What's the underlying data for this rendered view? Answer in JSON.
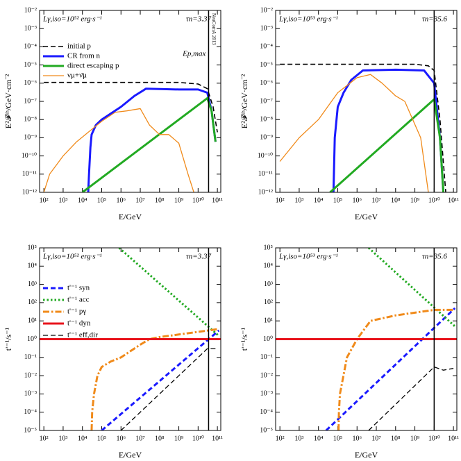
{
  "chart_data": [
    {
      "type": "line",
      "x_label": "E/GeV",
      "y_label": "E²𝓕ˢʰ/GeV·cm⁻²",
      "luminosity_label": "Lγ,iso=10⁵² erg·s⁻¹",
      "tau_label": "τn=3.37",
      "vline": 35000000000.0,
      "vline_label": "Ep,max",
      "vline_note": "NeuComA 2013",
      "log_x": true,
      "log_y": true,
      "legend": "upper left",
      "xlim": [
        60,
        150000000000.0
      ],
      "ylim": [
        1e-12,
        0.01
      ],
      "xticks": [
        {
          "value": 100.0,
          "label": "10²"
        },
        {
          "value": 1000.0,
          "label": "10³"
        },
        {
          "value": 10000.0,
          "label": "10⁴"
        },
        {
          "value": 100000.0,
          "label": "10⁵"
        },
        {
          "value": 1000000.0,
          "label": "10⁶"
        },
        {
          "value": 10000000.0,
          "label": "10⁷"
        },
        {
          "value": 100000000.0,
          "label": "10⁸"
        },
        {
          "value": 1000000000.0,
          "label": "10⁹"
        },
        {
          "value": 10000000000.0,
          "label": "10¹⁰"
        },
        {
          "value": 100000000000.0,
          "label": "10¹¹"
        }
      ],
      "yticks": [
        {
          "value": 1e-12,
          "label": "10⁻¹²"
        },
        {
          "value": 1e-11,
          "label": "10⁻¹¹"
        },
        {
          "value": 1e-10,
          "label": "10⁻¹⁰"
        },
        {
          "value": 1e-09,
          "label": "10⁻⁹"
        },
        {
          "value": 1e-08,
          "label": "10⁻⁸"
        },
        {
          "value": 1e-07,
          "label": "10⁻⁷"
        },
        {
          "value": 1e-06,
          "label": "10⁻⁶"
        },
        {
          "value": 1e-05,
          "label": "10⁻⁵"
        },
        {
          "value": 0.0001,
          "label": "10⁻⁴"
        },
        {
          "value": 0.001,
          "label": "10⁻³"
        },
        {
          "value": 0.01,
          "label": "10⁻²"
        }
      ],
      "series": [
        {
          "name": "initial p",
          "color": "#000000",
          "style": "dashed",
          "width": 1.6,
          "x": [
            100,
            1000000000.0,
            10000000000.0,
            30000000000.0,
            60000000000.0,
            100000000000.0
          ],
          "values": [
            1.1e-06,
            1.1e-06,
            9e-07,
            5e-07,
            5e-08,
            2e-09
          ]
        },
        {
          "name": "CR from n",
          "color": "#1a1aff",
          "style": "solid",
          "width": 3,
          "x": [
            20000.0,
            22000.0,
            26000.0,
            30000.0,
            50000.0,
            100000.0,
            1000000.0,
            5000000.0,
            20000000.0,
            1000000000.0,
            10000000000.0,
            30000000000.0,
            50000000000.0,
            80000000000.0
          ],
          "values": [
            1e-12,
            1e-11,
            3e-10,
            1.5e-09,
            5e-09,
            1e-08,
            5e-08,
            2e-07,
            5e-07,
            4.5e-07,
            4.5e-07,
            3e-07,
            3e-08,
            6e-10
          ]
        },
        {
          "name": "direct escaping p",
          "color": "#22aa22",
          "style": "solid",
          "width": 3,
          "x": [
            10000.0,
            30000000000.0,
            50000000000.0,
            80000000000.0
          ],
          "values": [
            1e-12,
            1.5e-07,
            3e-08,
            6e-10
          ]
        },
        {
          "name": "νμ+ν̄μ",
          "color": "#f08a1a",
          "style": "solid",
          "width": 1.3,
          "x": [
            100,
            200,
            1000.0,
            5000.0,
            20000.0,
            100000.0,
            500000.0,
            2000000.0,
            10000000.0,
            30000000.0,
            100000000.0,
            300000000.0,
            1000000000.0,
            3000000000.0,
            6000000000.0
          ],
          "values": [
            1e-12,
            1e-11,
            1e-10,
            6e-10,
            2e-09,
            8e-09,
            2.5e-08,
            3e-08,
            4e-08,
            5e-09,
            1.5e-09,
            1.5e-09,
            5e-10,
            1e-11,
            1e-12
          ]
        }
      ]
    },
    {
      "type": "line",
      "x_label": "E/GeV",
      "y_label": "E²𝓕ˢʰ/GeV·cm⁻²",
      "luminosity_label": "Lγ,iso=10⁵³ erg·s⁻¹",
      "tau_label": "τn=35.6",
      "vline": 10000000000.0,
      "log_x": true,
      "log_y": true,
      "xlim": [
        60,
        150000000000.0
      ],
      "ylim": [
        1e-12,
        0.01
      ],
      "xticks": [
        {
          "value": 100.0,
          "label": "10²"
        },
        {
          "value": 1000.0,
          "label": "10³"
        },
        {
          "value": 10000.0,
          "label": "10⁴"
        },
        {
          "value": 100000.0,
          "label": "10⁵"
        },
        {
          "value": 1000000.0,
          "label": "10⁶"
        },
        {
          "value": 10000000.0,
          "label": "10⁷"
        },
        {
          "value": 100000000.0,
          "label": "10⁸"
        },
        {
          "value": 1000000000.0,
          "label": "10⁹"
        },
        {
          "value": 10000000000.0,
          "label": "10¹⁰"
        },
        {
          "value": 100000000000.0,
          "label": "10¹¹"
        }
      ],
      "yticks": [
        {
          "value": 1e-12,
          "label": "10⁻¹²"
        },
        {
          "value": 1e-11,
          "label": "10⁻¹¹"
        },
        {
          "value": 1e-10,
          "label": "10⁻¹⁰"
        },
        {
          "value": 1e-09,
          "label": "10⁻⁹"
        },
        {
          "value": 1e-08,
          "label": "10⁻⁸"
        },
        {
          "value": 1e-07,
          "label": "10⁻⁷"
        },
        {
          "value": 1e-06,
          "label": "10⁻⁶"
        },
        {
          "value": 1e-05,
          "label": "10⁻⁵"
        },
        {
          "value": 0.0001,
          "label": "10⁻⁴"
        },
        {
          "value": 0.001,
          "label": "10⁻³"
        },
        {
          "value": 0.01,
          "label": "10⁻²"
        }
      ],
      "series": [
        {
          "color": "#000000",
          "style": "dashed",
          "width": 1.6,
          "x": [
            100,
            1000000000.0,
            5000000000.0,
            10000000000.0,
            20000000000.0,
            40000000000.0
          ],
          "values": [
            1.1e-05,
            1.1e-05,
            9e-06,
            5e-06,
            1e-08,
            1e-12
          ]
        },
        {
          "color": "#1a1aff",
          "style": "solid",
          "width": 3,
          "x": [
            60000.0,
            70000.0,
            100000.0,
            200000.0,
            500000.0,
            2000000.0,
            100000000.0,
            3000000000.0,
            10000000000.0,
            20000000000.0,
            30000000000.0
          ],
          "values": [
            1e-12,
            1e-09,
            5e-08,
            3e-07,
            1.5e-06,
            5e-06,
            5.5e-06,
            5e-06,
            1e-06,
            1e-09,
            1e-12
          ]
        },
        {
          "color": "#22aa22",
          "style": "solid",
          "width": 3,
          "x": [
            40000.0,
            10000000000.0,
            20000000000.0,
            30000000000.0
          ],
          "values": [
            1e-12,
            1.3e-07,
            1e-09,
            1e-12
          ]
        },
        {
          "color": "#f08a1a",
          "style": "solid",
          "width": 1.3,
          "x": [
            100,
            1000.0,
            10000.0,
            100000.0,
            1000000.0,
            5000000.0,
            20000000.0,
            100000000.0,
            300000000.0,
            2000000000.0,
            5000000000.0
          ],
          "values": [
            5e-11,
            1e-09,
            1e-08,
            3e-07,
            2e-06,
            3e-06,
            1e-06,
            2e-07,
            1e-07,
            1e-09,
            1e-12
          ]
        }
      ]
    },
    {
      "type": "line",
      "x_label": "E/GeV",
      "y_label": "t'⁻¹/s⁻¹",
      "luminosity_label": "Lγ,iso=10⁵² erg·s⁻¹",
      "tau_label": "τn=3.37",
      "vline": 35000000000.0,
      "log_x": true,
      "log_y": true,
      "legend": "upper left",
      "xlim": [
        60,
        150000000000.0
      ],
      "ylim": [
        1e-05,
        100000.0
      ],
      "xticks": [
        {
          "value": 100.0,
          "label": "10²"
        },
        {
          "value": 1000.0,
          "label": "10³"
        },
        {
          "value": 10000.0,
          "label": "10⁴"
        },
        {
          "value": 100000.0,
          "label": "10⁵"
        },
        {
          "value": 1000000.0,
          "label": "10⁶"
        },
        {
          "value": 10000000.0,
          "label": "10⁷"
        },
        {
          "value": 100000000.0,
          "label": "10⁸"
        },
        {
          "value": 1000000000.0,
          "label": "10⁹"
        },
        {
          "value": 10000000000.0,
          "label": "10¹⁰"
        },
        {
          "value": 100000000000.0,
          "label": "10¹¹"
        }
      ],
      "yticks": [
        {
          "value": 1e-05,
          "label": "10⁻⁵"
        },
        {
          "value": 0.0001,
          "label": "10⁻⁴"
        },
        {
          "value": 0.001,
          "label": "10⁻³"
        },
        {
          "value": 0.01,
          "label": "10⁻²"
        },
        {
          "value": 0.1,
          "label": "10⁻¹"
        },
        {
          "value": 1,
          "label": "10⁰"
        },
        {
          "value": 10,
          "label": "10¹"
        },
        {
          "value": 100,
          "label": "10²"
        },
        {
          "value": 1000,
          "label": "10³"
        },
        {
          "value": 10000,
          "label": "10⁴"
        },
        {
          "value": 100000,
          "label": "10⁵"
        }
      ],
      "series": [
        {
          "name": "t'⁻¹ syn",
          "color": "#1a1aff",
          "style": "dashed",
          "width": 3,
          "x": [
            100000.0,
            120000000000.0
          ],
          "values": [
            1e-05,
            3
          ]
        },
        {
          "name": "t'⁻¹ acc",
          "color": "#22aa22",
          "style": "dotted",
          "width": 3,
          "x": [
            800000.0,
            120000000000.0
          ],
          "values": [
            100000,
            1.5
          ]
        },
        {
          "name": "t'⁻¹ pγ",
          "color": "#f08a1a",
          "style": "dashdot",
          "width": 3,
          "x": [
            30000.0,
            32000.0,
            40000.0,
            60000.0,
            100000.0,
            300000.0,
            1000000.0,
            10000000.0,
            30000000.0,
            100000000.0,
            1000000000.0,
            10000000000.0,
            100000000000.0
          ],
          "values": [
            1e-05,
            0.0001,
            0.001,
            0.01,
            0.03,
            0.06,
            0.1,
            0.5,
            1,
            1.3,
            1.8,
            2.5,
            3.5
          ]
        },
        {
          "name": "t'⁻¹ dyn",
          "color": "#e8141c",
          "style": "solid",
          "width": 3,
          "x": [
            60,
            150000000000.0
          ],
          "values": [
            1,
            1
          ]
        },
        {
          "name": "t'⁻¹ eff,dir",
          "color": "#000000",
          "style": "dashed",
          "width": 1.3,
          "x": [
            1000000.0,
            30000000000.0,
            100000000000.0
          ],
          "values": [
            1e-05,
            0.3,
            0.3
          ]
        }
      ]
    },
    {
      "type": "line",
      "x_label": "E/GeV",
      "y_label": "t'⁻¹/s⁻¹",
      "luminosity_label": "Lγ,iso=10⁵³ erg·s⁻¹",
      "tau_label": "τn=35.6",
      "vline": 10000000000.0,
      "log_x": true,
      "log_y": true,
      "xlim": [
        60,
        150000000000.0
      ],
      "ylim": [
        1e-05,
        100000.0
      ],
      "xticks": [
        {
          "value": 100.0,
          "label": "10²"
        },
        {
          "value": 1000.0,
          "label": "10³"
        },
        {
          "value": 10000.0,
          "label": "10⁴"
        },
        {
          "value": 100000.0,
          "label": "10⁵"
        },
        {
          "value": 1000000.0,
          "label": "10⁶"
        },
        {
          "value": 10000000.0,
          "label": "10⁷"
        },
        {
          "value": 100000000.0,
          "label": "10⁸"
        },
        {
          "value": 1000000000.0,
          "label": "10⁹"
        },
        {
          "value": 10000000000.0,
          "label": "10¹⁰"
        },
        {
          "value": 100000000000.0,
          "label": "10¹¹"
        }
      ],
      "yticks": [
        {
          "value": 1e-05,
          "label": "10⁻⁵"
        },
        {
          "value": 0.0001,
          "label": "10⁻⁴"
        },
        {
          "value": 0.001,
          "label": "10⁻³"
        },
        {
          "value": 0.01,
          "label": "10⁻²"
        },
        {
          "value": 0.1,
          "label": "10⁻¹"
        },
        {
          "value": 1,
          "label": "10⁰"
        },
        {
          "value": 10,
          "label": "10¹"
        },
        {
          "value": 100,
          "label": "10²"
        },
        {
          "value": 1000,
          "label": "10³"
        },
        {
          "value": 10000,
          "label": "10⁴"
        },
        {
          "value": 100000,
          "label": "10⁵"
        }
      ],
      "series": [
        {
          "color": "#1a1aff",
          "style": "dashed",
          "width": 3,
          "x": [
            25000.0,
            120000000000.0
          ],
          "values": [
            1e-05,
            50
          ]
        },
        {
          "color": "#22aa22",
          "style": "dotted",
          "width": 3,
          "x": [
            4000000.0,
            120000000000.0
          ],
          "values": [
            100000,
            5
          ]
        },
        {
          "color": "#f08a1a",
          "style": "dashdot",
          "width": 3,
          "x": [
            110000.0,
            115000.0,
            130000.0,
            300000.0,
            1000000.0,
            5000000.0,
            100000000.0,
            10000000000.0,
            100000000000.0
          ],
          "values": [
            1e-05,
            0.0001,
            0.001,
            0.1,
            1,
            10,
            20,
            40,
            40
          ]
        },
        {
          "color": "#e8141c",
          "style": "solid",
          "width": 3,
          "x": [
            60,
            150000000000.0
          ],
          "values": [
            1,
            1
          ]
        },
        {
          "color": "#000000",
          "style": "dashed",
          "width": 1.3,
          "x": [
            4000000.0,
            10000000000.0,
            30000000000.0,
            100000000000.0
          ],
          "values": [
            1e-05,
            0.03,
            0.02,
            0.025
          ]
        }
      ]
    }
  ]
}
